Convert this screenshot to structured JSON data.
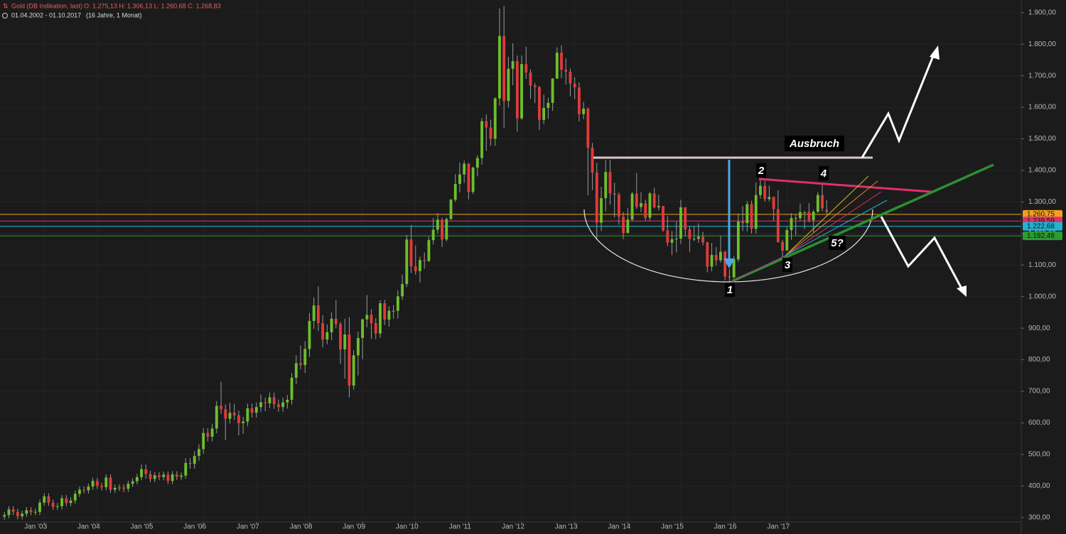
{
  "chart_data": {
    "type": "candlestick",
    "title": "Gold (DB Indikation, last)",
    "subtitle": "O: 1.275,13  H: 1.306,13  L: 1.260,68  C: 1.268,83",
    "period": "01.04.2002 - 01.10.2017",
    "period_note": "(16 Jahre, 1 Monat)",
    "up_color": "#6cbf2a",
    "down_color": "#e03a3a",
    "xlim": [
      "2002-03",
      "2021-06"
    ],
    "xticks": [
      {
        "value": "2003-01",
        "label": "Jan '03"
      },
      {
        "value": "2004-01",
        "label": "Jan '04"
      },
      {
        "value": "2005-01",
        "label": "Jan '05"
      },
      {
        "value": "2006-01",
        "label": "Jan '06"
      },
      {
        "value": "2007-01",
        "label": "Jan '07"
      },
      {
        "value": "2008-01",
        "label": "Jan '08"
      },
      {
        "value": "2009-01",
        "label": "Jan '09"
      },
      {
        "value": "2010-01",
        "label": "Jan '10"
      },
      {
        "value": "2011-01",
        "label": "Jan '11"
      },
      {
        "value": "2012-01",
        "label": "Jan '12"
      },
      {
        "value": "2013-01",
        "label": "Jan '13"
      },
      {
        "value": "2014-01",
        "label": "Jan '14"
      },
      {
        "value": "2015-01",
        "label": "Jan '15"
      },
      {
        "value": "2016-01",
        "label": "Jan '16"
      },
      {
        "value": "2017-01",
        "label": "Jan '17"
      }
    ],
    "ylim": [
      286,
      1940
    ],
    "yticks": [
      {
        "value": 300,
        "label": "300,00"
      },
      {
        "value": 400,
        "label": "400,00"
      },
      {
        "value": 500,
        "label": "500,00"
      },
      {
        "value": 600,
        "label": "600,00"
      },
      {
        "value": 700,
        "label": "700,00"
      },
      {
        "value": 800,
        "label": "800,00"
      },
      {
        "value": 900,
        "label": "900,00"
      },
      {
        "value": 1000,
        "label": "1.000,00"
      },
      {
        "value": 1100,
        "label": "1.100,00"
      },
      {
        "value": 1200,
        "label": "1.200,00"
      },
      {
        "value": 1300,
        "label": "1.300,00"
      },
      {
        "value": 1400,
        "label": "1.400,00"
      },
      {
        "value": 1500,
        "label": "1.500,00"
      },
      {
        "value": 1600,
        "label": "1.600,00"
      },
      {
        "value": 1700,
        "label": "1.700,00"
      },
      {
        "value": 1800,
        "label": "1.800,00"
      },
      {
        "value": 1900,
        "label": "1.900,00"
      }
    ],
    "grid": true,
    "levels": [
      {
        "value": 1260.75,
        "label": "1.260,75",
        "color": "#f0a020"
      },
      {
        "value": 1239.59,
        "label": "1.239,59",
        "color": "#e0306b"
      },
      {
        "value": 1222.68,
        "label": "1.222,68",
        "color": "#1fb5d0"
      },
      {
        "value": 1192.48,
        "label": "1.192,48",
        "color": "#2e9a32"
      }
    ],
    "annotations": [
      "Ausbruch",
      "1",
      "2",
      "3",
      "4",
      "5?"
    ],
    "x": [
      "2002-04",
      "2002-05",
      "2002-06",
      "2002-07",
      "2002-08",
      "2002-09",
      "2002-10",
      "2002-11",
      "2002-12",
      "2003-01",
      "2003-02",
      "2003-03",
      "2003-04",
      "2003-05",
      "2003-06",
      "2003-07",
      "2003-08",
      "2003-09",
      "2003-10",
      "2003-11",
      "2003-12",
      "2004-01",
      "2004-02",
      "2004-03",
      "2004-04",
      "2004-05",
      "2004-06",
      "2004-07",
      "2004-08",
      "2004-09",
      "2004-10",
      "2004-11",
      "2004-12",
      "2005-01",
      "2005-02",
      "2005-03",
      "2005-04",
      "2005-05",
      "2005-06",
      "2005-07",
      "2005-08",
      "2005-09",
      "2005-10",
      "2005-11",
      "2005-12",
      "2006-01",
      "2006-02",
      "2006-03",
      "2006-04",
      "2006-05",
      "2006-06",
      "2006-07",
      "2006-08",
      "2006-09",
      "2006-10",
      "2006-11",
      "2006-12",
      "2007-01",
      "2007-02",
      "2007-03",
      "2007-04",
      "2007-05",
      "2007-06",
      "2007-07",
      "2007-08",
      "2007-09",
      "2007-10",
      "2007-11",
      "2007-12",
      "2008-01",
      "2008-02",
      "2008-03",
      "2008-04",
      "2008-05",
      "2008-06",
      "2008-07",
      "2008-08",
      "2008-09",
      "2008-10",
      "2008-11",
      "2008-12",
      "2009-01",
      "2009-02",
      "2009-03",
      "2009-04",
      "2009-05",
      "2009-06",
      "2009-07",
      "2009-08",
      "2009-09",
      "2009-10",
      "2009-11",
      "2009-12",
      "2010-01",
      "2010-02",
      "2010-03",
      "2010-04",
      "2010-05",
      "2010-06",
      "2010-07",
      "2010-08",
      "2010-09",
      "2010-10",
      "2010-11",
      "2010-12",
      "2011-01",
      "2011-02",
      "2011-03",
      "2011-04",
      "2011-05",
      "2011-06",
      "2011-07",
      "2011-08",
      "2011-09",
      "2011-10",
      "2011-11",
      "2011-12",
      "2012-01",
      "2012-02",
      "2012-03",
      "2012-04",
      "2012-05",
      "2012-06",
      "2012-07",
      "2012-08",
      "2012-09",
      "2012-10",
      "2012-11",
      "2012-12",
      "2013-01",
      "2013-02",
      "2013-03",
      "2013-04",
      "2013-05",
      "2013-06",
      "2013-07",
      "2013-08",
      "2013-09",
      "2013-10",
      "2013-11",
      "2013-12",
      "2014-01",
      "2014-02",
      "2014-03",
      "2014-04",
      "2014-05",
      "2014-06",
      "2014-07",
      "2014-08",
      "2014-09",
      "2014-10",
      "2014-11",
      "2014-12",
      "2015-01",
      "2015-02",
      "2015-03",
      "2015-04",
      "2015-05",
      "2015-06",
      "2015-07",
      "2015-08",
      "2015-09",
      "2015-10",
      "2015-11",
      "2015-12",
      "2016-01",
      "2016-02",
      "2016-03",
      "2016-04",
      "2016-05",
      "2016-06",
      "2016-07",
      "2016-08",
      "2016-09",
      "2016-10",
      "2016-11",
      "2016-12",
      "2017-01",
      "2017-02",
      "2017-03",
      "2017-04",
      "2017-05",
      "2017-06",
      "2017-07",
      "2017-08",
      "2017-09",
      "2017-10"
    ],
    "ohlc": [
      [
        303,
        318,
        293,
        308
      ],
      [
        308,
        336,
        298,
        326
      ],
      [
        326,
        336,
        308,
        318
      ],
      [
        318,
        328,
        294,
        304
      ],
      [
        304,
        322,
        294,
        312
      ],
      [
        312,
        333,
        302,
        323
      ],
      [
        323,
        333,
        307,
        317
      ],
      [
        317,
        328,
        307,
        318
      ],
      [
        318,
        357,
        308,
        347
      ],
      [
        347,
        377,
        337,
        367
      ],
      [
        367,
        377,
        337,
        347
      ],
      [
        347,
        357,
        324,
        334
      ],
      [
        334,
        346,
        324,
        336
      ],
      [
        336,
        371,
        326,
        361
      ],
      [
        361,
        371,
        336,
        346
      ],
      [
        346,
        364,
        336,
        354
      ],
      [
        354,
        385,
        344,
        375
      ],
      [
        375,
        398,
        365,
        388
      ],
      [
        388,
        398,
        376,
        386
      ],
      [
        386,
        408,
        376,
        398
      ],
      [
        398,
        426,
        388,
        416
      ],
      [
        416,
        426,
        390,
        400
      ],
      [
        400,
        410,
        386,
        396
      ],
      [
        396,
        437,
        386,
        427
      ],
      [
        427,
        437,
        378,
        388
      ],
      [
        388,
        404,
        378,
        394
      ],
      [
        394,
        405,
        384,
        395
      ],
      [
        395,
        405,
        381,
        391
      ],
      [
        391,
        417,
        381,
        407
      ],
      [
        407,
        425,
        397,
        415
      ],
      [
        415,
        438,
        405,
        428
      ],
      [
        428,
        468,
        418,
        453
      ],
      [
        453,
        468,
        423,
        438
      ],
      [
        438,
        448,
        412,
        422
      ],
      [
        422,
        444,
        412,
        434
      ],
      [
        434,
        444,
        418,
        428
      ],
      [
        428,
        446,
        418,
        436
      ],
      [
        436,
        446,
        406,
        416
      ],
      [
        416,
        447,
        406,
        437
      ],
      [
        437,
        447,
        419,
        429
      ],
      [
        429,
        443,
        419,
        433
      ],
      [
        433,
        488,
        423,
        473
      ],
      [
        473,
        488,
        455,
        470
      ],
      [
        470,
        510,
        455,
        495
      ],
      [
        495,
        532,
        480,
        517
      ],
      [
        517,
        583,
        502,
        568
      ],
      [
        568,
        583,
        541,
        556
      ],
      [
        556,
        597,
        541,
        582
      ],
      [
        582,
        669,
        567,
        654
      ],
      [
        654,
        730,
        628,
        643
      ],
      [
        643,
        658,
        545,
        613
      ],
      [
        613,
        663,
        598,
        632
      ],
      [
        632,
        660,
        609,
        624
      ],
      [
        624,
        639,
        560,
        599
      ],
      [
        599,
        619,
        565,
        604
      ],
      [
        604,
        661,
        589,
        646
      ],
      [
        646,
        661,
        617,
        632
      ],
      [
        632,
        665,
        617,
        650
      ],
      [
        650,
        690,
        635,
        665
      ],
      [
        665,
        680,
        637,
        662
      ],
      [
        662,
        696,
        647,
        681
      ],
      [
        681,
        696,
        644,
        659
      ],
      [
        659,
        674,
        635,
        650
      ],
      [
        650,
        680,
        635,
        665
      ],
      [
        665,
        688,
        645,
        673
      ],
      [
        673,
        758,
        658,
        743
      ],
      [
        743,
        814,
        723,
        789
      ],
      [
        789,
        845,
        770,
        783
      ],
      [
        783,
        859,
        758,
        834
      ],
      [
        834,
        948,
        809,
        923
      ],
      [
        923,
        997,
        898,
        972
      ],
      [
        972,
        1032,
        891,
        916
      ],
      [
        916,
        941,
        839,
        864
      ],
      [
        864,
        912,
        849,
        887
      ],
      [
        887,
        950,
        862,
        930
      ],
      [
        930,
        989,
        900,
        913
      ],
      [
        913,
        920,
        787,
        833
      ],
      [
        833,
        930,
        740,
        880
      ],
      [
        880,
        935,
        681,
        718
      ],
      [
        718,
        830,
        705,
        814
      ],
      [
        814,
        889,
        750,
        869
      ],
      [
        869,
        930,
        802,
        928
      ],
      [
        928,
        1005,
        903,
        942
      ],
      [
        942,
        960,
        866,
        916
      ],
      [
        916,
        932,
        865,
        883
      ],
      [
        883,
        989,
        870,
        979
      ],
      [
        979,
        990,
        910,
        927
      ],
      [
        927,
        970,
        905,
        955
      ],
      [
        955,
        973,
        930,
        955
      ],
      [
        955,
        1020,
        930,
        1001
      ],
      [
        1001,
        1070,
        990,
        1040
      ],
      [
        1040,
        1195,
        1030,
        1181
      ],
      [
        1181,
        1227,
        1075,
        1096
      ],
      [
        1096,
        1162,
        1070,
        1081
      ],
      [
        1081,
        1127,
        1045,
        1116
      ],
      [
        1116,
        1140,
        1088,
        1113
      ],
      [
        1113,
        1190,
        1110,
        1179
      ],
      [
        1179,
        1249,
        1165,
        1212
      ],
      [
        1212,
        1265,
        1200,
        1244
      ],
      [
        1244,
        1250,
        1157,
        1181
      ],
      [
        1181,
        1250,
        1175,
        1246
      ],
      [
        1246,
        1310,
        1242,
        1307
      ],
      [
        1307,
        1388,
        1300,
        1357
      ],
      [
        1357,
        1425,
        1330,
        1387
      ],
      [
        1387,
        1431,
        1360,
        1421
      ],
      [
        1421,
        1424,
        1308,
        1332
      ],
      [
        1332,
        1412,
        1325,
        1409
      ],
      [
        1409,
        1448,
        1381,
        1439
      ],
      [
        1439,
        1566,
        1418,
        1556
      ],
      [
        1556,
        1577,
        1462,
        1536
      ],
      [
        1536,
        1561,
        1478,
        1500
      ],
      [
        1500,
        1632,
        1478,
        1628
      ],
      [
        1628,
        1913,
        1605,
        1826
      ],
      [
        1826,
        1921,
        1535,
        1620
      ],
      [
        1620,
        1760,
        1600,
        1722
      ],
      [
        1722,
        1803,
        1670,
        1746
      ],
      [
        1746,
        1764,
        1523,
        1565
      ],
      [
        1565,
        1764,
        1560,
        1737
      ],
      [
        1737,
        1792,
        1690,
        1710
      ],
      [
        1710,
        1720,
        1627,
        1669
      ],
      [
        1669,
        1677,
        1613,
        1664
      ],
      [
        1664,
        1668,
        1528,
        1560
      ],
      [
        1560,
        1640,
        1547,
        1598
      ],
      [
        1598,
        1630,
        1563,
        1614
      ],
      [
        1614,
        1692,
        1589,
        1691
      ],
      [
        1691,
        1790,
        1690,
        1773
      ],
      [
        1773,
        1796,
        1692,
        1719
      ],
      [
        1719,
        1755,
        1672,
        1713
      ],
      [
        1713,
        1723,
        1635,
        1675
      ],
      [
        1675,
        1695,
        1626,
        1663
      ],
      [
        1663,
        1679,
        1555,
        1578
      ],
      [
        1578,
        1617,
        1562,
        1596
      ],
      [
        1596,
        1599,
        1321,
        1472
      ],
      [
        1472,
        1487,
        1338,
        1393
      ],
      [
        1393,
        1424,
        1180,
        1234
      ],
      [
        1234,
        1348,
        1208,
        1312
      ],
      [
        1312,
        1434,
        1270,
        1395
      ],
      [
        1395,
        1434,
        1292,
        1327
      ],
      [
        1327,
        1361,
        1251,
        1323
      ],
      [
        1323,
        1330,
        1228,
        1253
      ],
      [
        1253,
        1268,
        1182,
        1202
      ],
      [
        1202,
        1280,
        1200,
        1244
      ],
      [
        1244,
        1332,
        1238,
        1326
      ],
      [
        1326,
        1392,
        1277,
        1284
      ],
      [
        1284,
        1331,
        1268,
        1296
      ],
      [
        1296,
        1307,
        1240,
        1250
      ],
      [
        1250,
        1332,
        1240,
        1327
      ],
      [
        1327,
        1345,
        1280,
        1283
      ],
      [
        1283,
        1323,
        1273,
        1287
      ],
      [
        1287,
        1287,
        1206,
        1210
      ],
      [
        1210,
        1255,
        1160,
        1171
      ],
      [
        1171,
        1208,
        1131,
        1182
      ],
      [
        1182,
        1238,
        1140,
        1184
      ],
      [
        1184,
        1307,
        1167,
        1283
      ],
      [
        1283,
        1284,
        1191,
        1213
      ],
      [
        1213,
        1224,
        1142,
        1183
      ],
      [
        1183,
        1224,
        1176,
        1183
      ],
      [
        1183,
        1232,
        1170,
        1190
      ],
      [
        1190,
        1205,
        1162,
        1172
      ],
      [
        1172,
        1174,
        1077,
        1095
      ],
      [
        1095,
        1170,
        1080,
        1132
      ],
      [
        1132,
        1157,
        1098,
        1115
      ],
      [
        1115,
        1192,
        1108,
        1142
      ],
      [
        1142,
        1146,
        1052,
        1064
      ],
      [
        1064,
        1088,
        1046,
        1061
      ],
      [
        1061,
        1128,
        1058,
        1118
      ],
      [
        1118,
        1263,
        1110,
        1238
      ],
      [
        1238,
        1287,
        1208,
        1233
      ],
      [
        1233,
        1303,
        1207,
        1293
      ],
      [
        1293,
        1304,
        1200,
        1215
      ],
      [
        1215,
        1362,
        1200,
        1322
      ],
      [
        1322,
        1375,
        1310,
        1351
      ],
      [
        1351,
        1367,
        1301,
        1309
      ],
      [
        1309,
        1352,
        1302,
        1316
      ],
      [
        1316,
        1317,
        1241,
        1277
      ],
      [
        1277,
        1337,
        1171,
        1173
      ],
      [
        1173,
        1180,
        1124,
        1146
      ],
      [
        1146,
        1220,
        1146,
        1211
      ],
      [
        1211,
        1264,
        1180,
        1249
      ],
      [
        1249,
        1261,
        1195,
        1249
      ],
      [
        1249,
        1295,
        1240,
        1268
      ],
      [
        1268,
        1270,
        1214,
        1268
      ],
      [
        1268,
        1296,
        1236,
        1242
      ],
      [
        1242,
        1275,
        1204,
        1269
      ],
      [
        1269,
        1331,
        1265,
        1322
      ],
      [
        1322,
        1357,
        1271,
        1280
      ],
      [
        1275.13,
        1306.13,
        1260.68,
        1268.83
      ]
    ]
  }
}
